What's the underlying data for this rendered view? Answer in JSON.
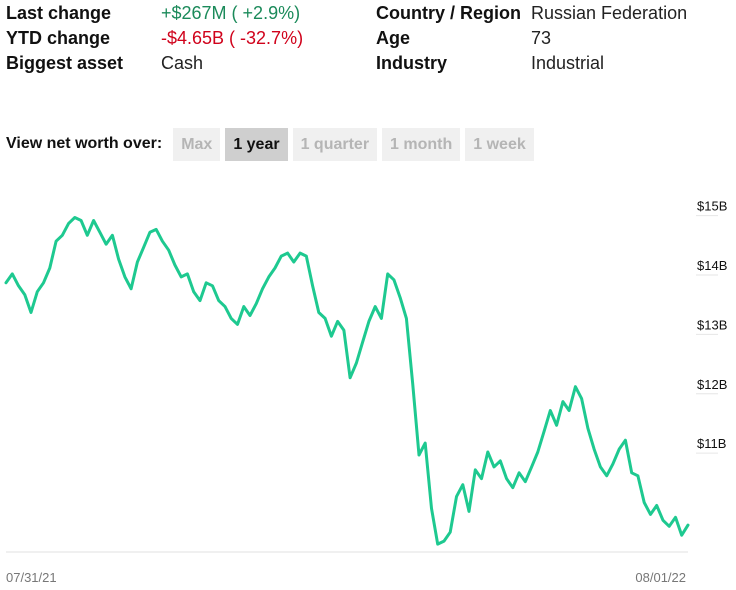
{
  "stats": {
    "last_change_label": "Last change",
    "last_change_value": "+$267M ( +2.9%)",
    "ytd_change_label": "YTD change",
    "ytd_change_value": "-$4.65B ( -32.7%)",
    "biggest_asset_label": "Biggest asset",
    "biggest_asset_value": "Cash",
    "country_label": "Country / Region",
    "country_value": "Russian Federation",
    "age_label": "Age",
    "age_value": "73",
    "industry_label": "Industry",
    "industry_value": "Industrial"
  },
  "range": {
    "label": "View net worth over:",
    "options": [
      "Max",
      "1 year",
      "1 quarter",
      "1 month",
      "1 week"
    ],
    "active": "1 year"
  },
  "colors": {
    "line": "#1ec990",
    "positive": "#1b8a5a",
    "negative": "#d0021b",
    "grid": "#e6e6e6"
  },
  "chart_data": {
    "type": "line",
    "title": "",
    "xlabel": "",
    "ylabel": "",
    "x_range": [
      "07/31/21",
      "08/01/22"
    ],
    "x_tick_labels": [
      "07/31/21",
      "08/01/22"
    ],
    "y_tick_labels": [
      "$15B",
      "$14B",
      "$13B",
      "$12B",
      "$11B"
    ],
    "y_ticks": [
      15,
      14,
      13,
      12,
      11
    ],
    "ylim": [
      9.2,
      15.6
    ],
    "grid": true,
    "series": [
      {
        "values": [
          13.7,
          13.85,
          13.65,
          13.5,
          13.2,
          13.55,
          13.7,
          13.95,
          14.4,
          14.5,
          14.7,
          14.8,
          14.75,
          14.5,
          14.75,
          14.55,
          14.35,
          14.5,
          14.1,
          13.8,
          13.6,
          14.05,
          14.3,
          14.55,
          14.6,
          14.4,
          14.25,
          14.0,
          13.8,
          13.85,
          13.55,
          13.4,
          13.7,
          13.65,
          13.4,
          13.3,
          13.1,
          13.0,
          13.3,
          13.15,
          13.35,
          13.6,
          13.8,
          13.95,
          14.15,
          14.2,
          14.05,
          14.2,
          14.15,
          13.65,
          13.2,
          13.1,
          12.8,
          13.05,
          12.9,
          12.1,
          12.35,
          12.7,
          13.05,
          13.3,
          13.1,
          13.85,
          13.75,
          13.45,
          13.1,
          12.0,
          10.8,
          11.0,
          9.9,
          9.3,
          9.35,
          9.5,
          10.1,
          10.3,
          9.85,
          10.55,
          10.4,
          10.85,
          10.6,
          10.7,
          10.4,
          10.25,
          10.5,
          10.35,
          10.6,
          10.85,
          11.2,
          11.55,
          11.3,
          11.7,
          11.55,
          11.95,
          11.75,
          11.25,
          10.9,
          10.6,
          10.45,
          10.65,
          10.9,
          11.05,
          10.5,
          10.45,
          10.0,
          9.8,
          9.95,
          9.7,
          9.6,
          9.75,
          9.45,
          9.62
        ]
      }
    ]
  }
}
